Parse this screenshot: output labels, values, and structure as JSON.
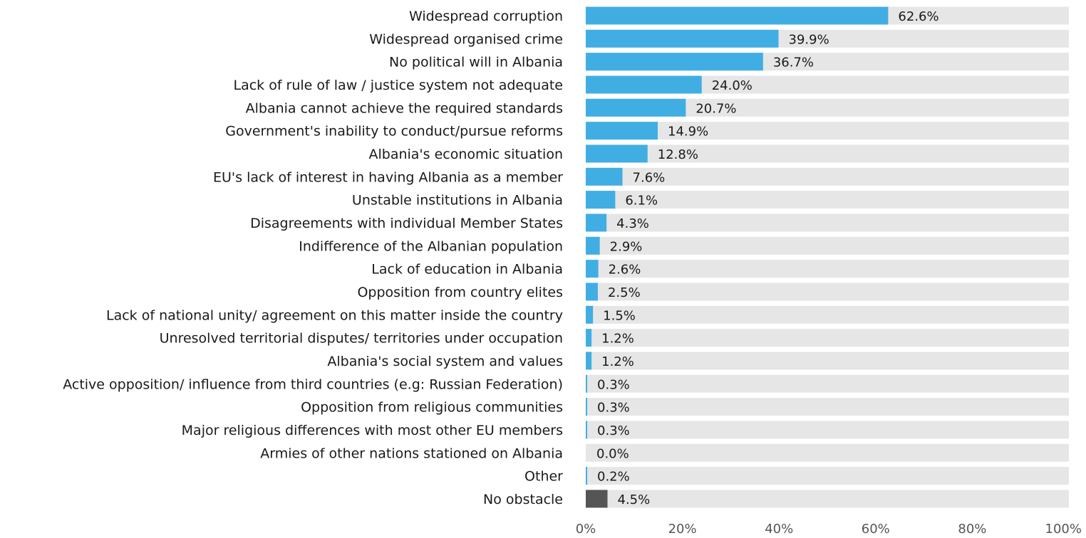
{
  "chart_data": {
    "type": "bar",
    "orientation": "horizontal",
    "title": "",
    "xlabel": "",
    "ylabel": "",
    "xlim": [
      0,
      100
    ],
    "grid": false,
    "value_suffix": "%",
    "categories": [
      "Widespread corruption",
      "Widespread organised crime",
      "No political will in Albania",
      "Lack of rule of law / justice system not adequate",
      "Albania cannot achieve the required standards",
      "Government's inability to conduct/pursue reforms",
      "Albania's economic situation",
      "EU's lack of interest in having Albania as a member",
      "Unstable institutions in Albania",
      "Disagreements with individual Member States",
      "Indifference of the Albanian population",
      "Lack of education in Albania",
      "Opposition from country elites",
      "Lack of national unity/ agreement on this matter inside the country",
      "Unresolved territorial disputes/ territories under occupation",
      "Albania's social system and values",
      "Active opposition/ influence from third countries (e.g: Russian Federation)",
      "Opposition from religious communities",
      "Major religious differences with most other EU members",
      "Armies of other nations stationed on Albania",
      "Other",
      "No obstacle"
    ],
    "values": [
      62.6,
      39.9,
      36.7,
      24.0,
      20.7,
      14.9,
      12.8,
      7.6,
      6.1,
      4.3,
      2.9,
      2.6,
      2.5,
      1.5,
      1.2,
      1.2,
      0.3,
      0.3,
      0.3,
      0.0,
      0.2,
      4.5
    ],
    "value_labels": [
      "62.6%",
      "39.9%",
      "36.7%",
      "24.0%",
      "20.7%",
      "14.9%",
      "12.8%",
      "7.6%",
      "6.1%",
      "4.3%",
      "2.9%",
      "2.6%",
      "2.5%",
      "1.5%",
      "1.2%",
      "1.2%",
      "0.3%",
      "0.3%",
      "0.3%",
      "0.0%",
      "0.2%",
      "4.5%"
    ],
    "x_ticks": [
      "0%",
      "20%",
      "40%",
      "60%",
      "80%",
      "100%"
    ],
    "x_tick_values": [
      0,
      20,
      40,
      60,
      80,
      100
    ],
    "colors": {
      "bar": "#41aee3",
      "highlight": "#555555",
      "track": "#e6e6e6"
    },
    "highlight_category": "No obstacle"
  }
}
